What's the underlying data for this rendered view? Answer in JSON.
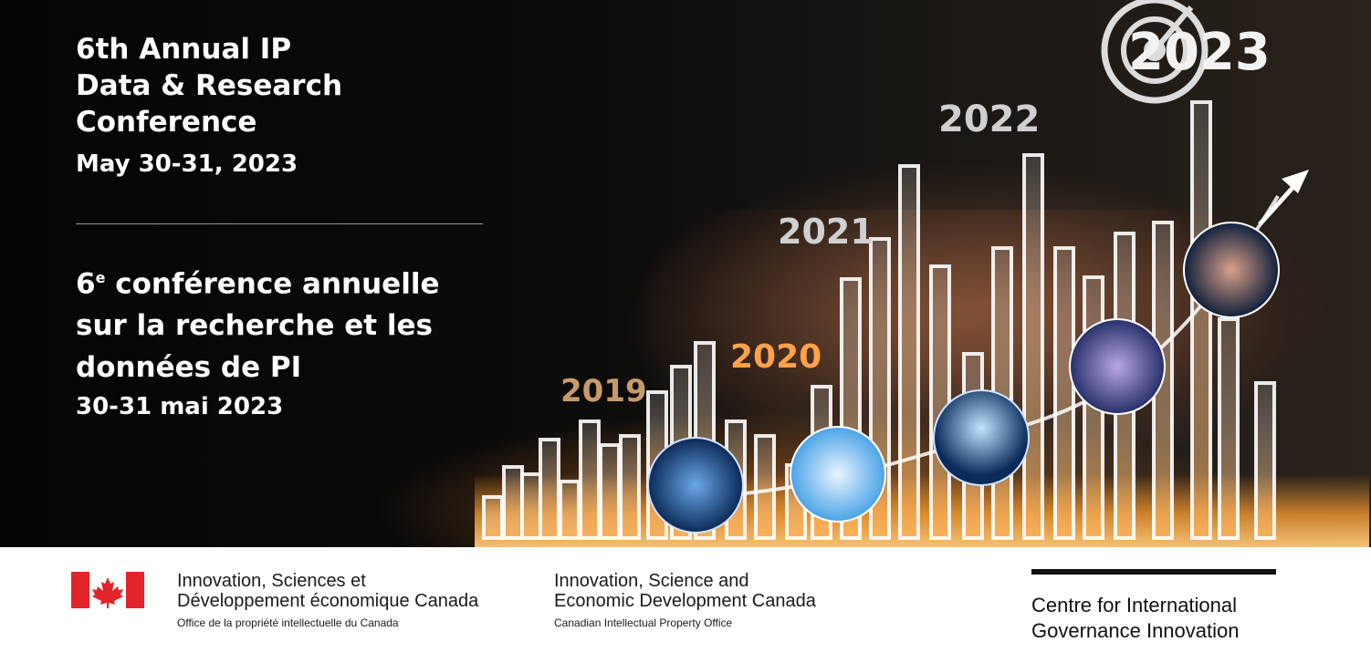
{
  "title_en": {
    "line1": "6th Annual IP",
    "line2": "Data & Research",
    "line3": "Conference",
    "date": "May 30-31, 2023"
  },
  "title_fr": {
    "ordinal": "6",
    "ordinal_sup": "e",
    "line1_rest": " conférence annuelle",
    "line2": "sur la recherche et les",
    "line3": "données de PI",
    "date": "30-31 mai 2023"
  },
  "years": [
    "2019",
    "2020",
    "2021",
    "2022",
    "2023"
  ],
  "colors": {
    "flag_red": "#e3242b",
    "glow_orange": "#ff9a2e",
    "bar_outline": "#ffffff"
  },
  "footer": {
    "fr_agency": {
      "line1": "Innovation, Sciences et",
      "line2": "Développement économique Canada",
      "line3": "Office de la propriété intellectuelle du Canada"
    },
    "en_agency": {
      "line1": "Innovation, Science and",
      "line2": "Economic Development Canada",
      "line3": "Canadian Intellectual Property Office"
    },
    "cigi": {
      "line1": "Centre for International",
      "line2": "Governance Innovation"
    }
  },
  "icons": [
    "canada-flag-icon",
    "target-icon",
    "growth-arrow-icon",
    "lightbulb-icon",
    "network-icon",
    "city-icon"
  ]
}
